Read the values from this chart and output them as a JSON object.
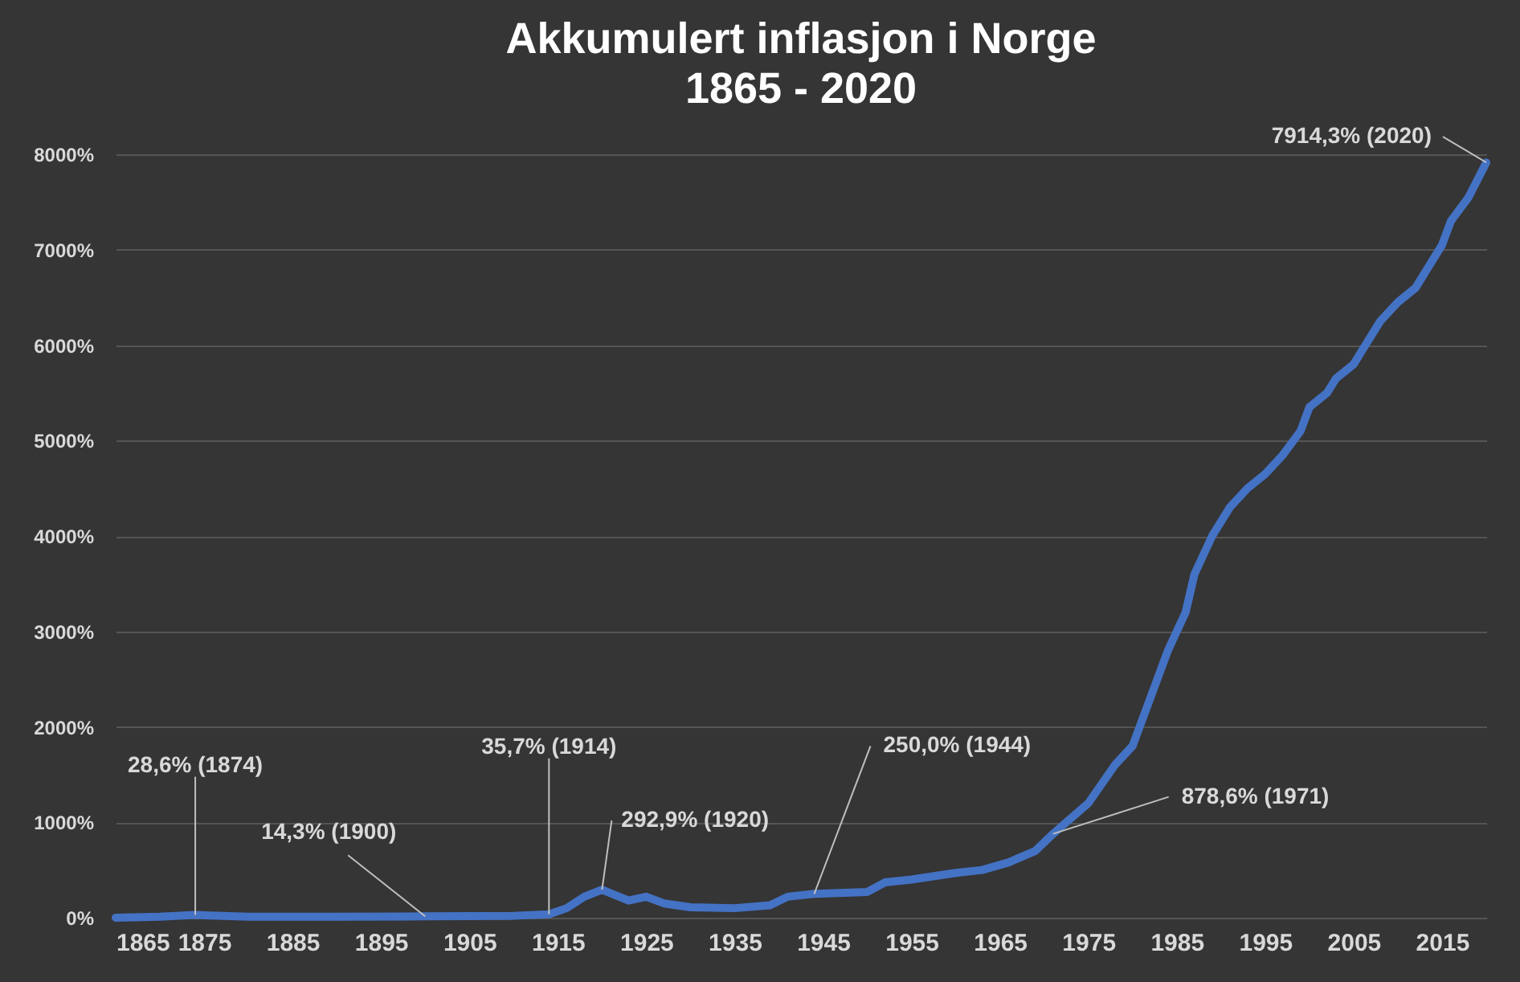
{
  "chart_data": {
    "type": "line",
    "title": "Akkumulert inflasjon i Norge",
    "subtitle": "1865 - 2020",
    "x": [
      1865,
      1870,
      1874,
      1880,
      1890,
      1900,
      1910,
      1914,
      1916,
      1918,
      1920,
      1923,
      1925,
      1927,
      1930,
      1935,
      1939,
      1941,
      1944,
      1950,
      1952,
      1955,
      1960,
      1963,
      1966,
      1969,
      1971,
      1975,
      1978,
      1980,
      1982,
      1984,
      1986,
      1987,
      1989,
      1991,
      1993,
      1995,
      1997,
      1999,
      2000,
      2002,
      2003,
      2005,
      2006,
      2008,
      2010,
      2012,
      2014,
      2015,
      2016,
      2018,
      2020
    ],
    "series": [
      {
        "color": "#4472c4",
        "values": [
          0,
          10,
          28.6,
          10,
          10,
          14.3,
          20,
          35.7,
          100,
          220,
          292.9,
          180,
          220,
          150,
          110,
          100,
          130,
          220,
          250,
          270,
          370,
          400,
          470,
          500,
          580,
          700,
          878.6,
          1200,
          1600,
          1800,
          2300,
          2800,
          3200,
          3600,
          4000,
          4300,
          4500,
          4650,
          4850,
          5100,
          5350,
          5500,
          5650,
          5800,
          5950,
          6250,
          6450,
          6600,
          6900,
          7050,
          7300,
          7550,
          7914.3
        ]
      }
    ],
    "xlim": [
      1865,
      2020
    ],
    "xticks": [
      1865,
      1875,
      1885,
      1895,
      1905,
      1915,
      1925,
      1935,
      1945,
      1955,
      1965,
      1975,
      1985,
      1995,
      2005,
      2015
    ],
    "ylim": [
      0,
      8000
    ],
    "yticks": [
      {
        "value": 0,
        "label": "0%"
      },
      {
        "value": 1000,
        "label": "1000%"
      },
      {
        "value": 2000,
        "label": "2000%"
      },
      {
        "value": 3000,
        "label": "3000%"
      },
      {
        "value": 4000,
        "label": "4000%"
      },
      {
        "value": 5000,
        "label": "5000%"
      },
      {
        "value": 6000,
        "label": "6000%"
      },
      {
        "value": 7000,
        "label": "7000%"
      },
      {
        "value": 8000,
        "label": "8000%"
      }
    ],
    "grid": "y",
    "marker": "none",
    "line_style": "solid",
    "annotations": [
      {
        "text": "28,6% (1874)",
        "x": 1874,
        "y": 28.6
      },
      {
        "text": "14,3% (1900)",
        "x": 1900,
        "y": 14.3
      },
      {
        "text": "35,7% (1914)",
        "x": 1914,
        "y": 35.7
      },
      {
        "text": "292,9% (1920)",
        "x": 1920,
        "y": 292.9
      },
      {
        "text": "250,0% (1944)",
        "x": 1944,
        "y": 250
      },
      {
        "text": "878,6% (1971)",
        "x": 1971,
        "y": 878.6
      },
      {
        "text": "7914,3% (2020)",
        "x": 2020,
        "y": 7914.3
      }
    ]
  }
}
